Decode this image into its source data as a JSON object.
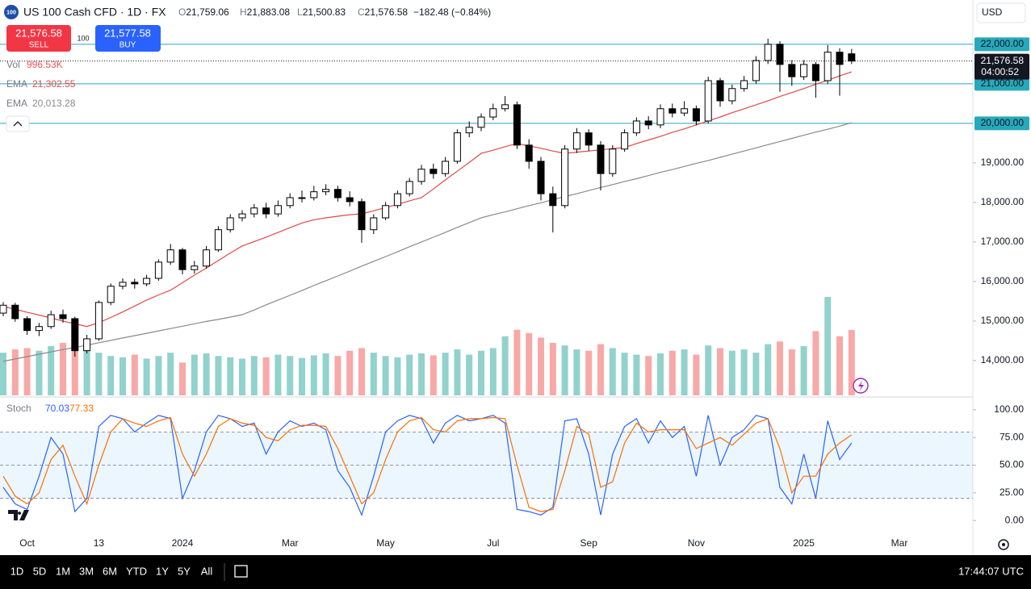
{
  "ui": {
    "symbol_icon": "100",
    "symbol": "US 100 Cash CFD · 1D · FX",
    "ohlc": [
      {
        "key": "O",
        "value": "21,759.06"
      },
      {
        "key": "H",
        "value": "21,883.08"
      },
      {
        "key": "L",
        "value": "21,500.83"
      },
      {
        "key": "C",
        "value": "21,576.58"
      }
    ],
    "change": "−182.48 (−0.84%)",
    "sell": {
      "price": "21,576.58",
      "label": "SELL"
    },
    "spread": "100",
    "buy": {
      "price": "21,577.58",
      "label": "BUY"
    },
    "currency": "USD",
    "volume_legend": {
      "name": "Vol",
      "value": "996.53K"
    },
    "ema_values": [
      "21,302.55",
      "20,013.28"
    ],
    "last_price": "21,576.58",
    "countdown": "04:00:52",
    "stoch_values": [
      "70.03",
      "77.33"
    ],
    "ranges": [
      "1D",
      "5D",
      "1M",
      "3M",
      "6M",
      "YTD",
      "1Y",
      "5Y",
      "All"
    ],
    "clock": "17:44:07 UTC"
  },
  "chart_data": [
    {
      "type": "candlestick",
      "categories": [
        null,
        null,
        "Oct",
        null,
        null,
        null,
        null,
        null,
        "13",
        null,
        null,
        null,
        null,
        null,
        null,
        "2024",
        null,
        null,
        null,
        null,
        null,
        null,
        null,
        null,
        "Mar",
        null,
        null,
        null,
        null,
        null,
        null,
        null,
        "May",
        null,
        null,
        null,
        null,
        null,
        null,
        null,
        null,
        "Jul",
        null,
        null,
        null,
        null,
        null,
        null,
        null,
        "Sep",
        null,
        null,
        null,
        null,
        null,
        null,
        null,
        null,
        "Nov",
        null,
        null,
        null,
        null,
        null,
        null,
        null,
        null,
        "2025",
        null,
        null,
        null,
        null,
        null,
        null,
        null,
        "Mar"
      ],
      "open": [
        15200,
        15400,
        15060,
        14760,
        14860,
        15160,
        15060,
        14250,
        14550,
        15470,
        15880,
        15980,
        15940,
        16080,
        16490,
        16800,
        16300,
        16390,
        16800,
        17310,
        17610,
        17710,
        17860,
        17710,
        17920,
        18120,
        18120,
        18270,
        18330,
        18120,
        18020,
        17310,
        17610,
        17920,
        18220,
        18530,
        18840,
        18730,
        19040,
        19760,
        19900,
        20160,
        20370,
        20470,
        19450,
        19040,
        18220,
        17920,
        19350,
        19760,
        19450,
        18730,
        19350,
        19760,
        20060,
        19960,
        20370,
        20260,
        20370,
        20060,
        21080,
        20570,
        20880,
        21080,
        21590,
        22000,
        21490,
        21180,
        21490,
        21080,
        21800,
        21759.06,
        null,
        null,
        null,
        null
      ],
      "high": [
        15480,
        15460,
        15120,
        14950,
        15260,
        15290,
        15110,
        14650,
        15520,
        15950,
        16080,
        16070,
        16170,
        16560,
        16950,
        16850,
        16520,
        16900,
        17400,
        17700,
        17800,
        17960,
        17990,
        18050,
        18230,
        18300,
        18420,
        18460,
        18420,
        18280,
        18100,
        17700,
        18010,
        18300,
        18620,
        18950,
        18980,
        19150,
        19850,
        20050,
        20250,
        20500,
        20690,
        20550,
        19600,
        19150,
        18400,
        19450,
        19880,
        19850,
        19550,
        19450,
        19850,
        20150,
        20180,
        20480,
        20500,
        20560,
        20450,
        21180,
        21150,
        20980,
        21200,
        21700,
        22140,
        22080,
        21600,
        21600,
        21550,
        21980,
        21900,
        21883.08,
        null,
        null,
        null,
        null
      ],
      "low": [
        15120,
        14980,
        14650,
        14620,
        14800,
        14960,
        14100,
        14180,
        14500,
        15400,
        15800,
        15820,
        15880,
        16020,
        16420,
        16180,
        16200,
        16330,
        16750,
        17240,
        17520,
        17620,
        17600,
        17640,
        17850,
        18000,
        18050,
        18180,
        18020,
        17900,
        16980,
        17200,
        17550,
        17850,
        18150,
        18450,
        18600,
        18650,
        18980,
        19650,
        19800,
        20080,
        20300,
        19350,
        18850,
        18050,
        17240,
        17850,
        19250,
        19300,
        18300,
        18650,
        19280,
        19680,
        19850,
        19880,
        20150,
        20180,
        19950,
        20000,
        20420,
        20480,
        20800,
        21000,
        21500,
        20800,
        20950,
        21100,
        20650,
        21000,
        20700,
        21500.83,
        null,
        null,
        null,
        null
      ],
      "close": [
        15400,
        15060,
        14760,
        14860,
        15160,
        15060,
        14250,
        14550,
        15470,
        15880,
        15980,
        15940,
        16080,
        16490,
        16800,
        16300,
        16390,
        16800,
        17310,
        17610,
        17710,
        17860,
        17710,
        17920,
        18120,
        18120,
        18270,
        18330,
        18120,
        18020,
        17310,
        17610,
        17920,
        18220,
        18530,
        18840,
        18730,
        19040,
        19760,
        19900,
        20160,
        20370,
        20470,
        19450,
        19040,
        18220,
        17920,
        19350,
        19760,
        19450,
        18730,
        19350,
        19760,
        20060,
        19960,
        20370,
        20260,
        20370,
        20060,
        21080,
        20570,
        20880,
        21080,
        21590,
        22000,
        21490,
        21180,
        21490,
        21080,
        21800,
        21490,
        21576.58,
        null,
        null,
        null,
        null
      ],
      "volume": [
        650,
        700,
        720,
        680,
        750,
        800,
        850,
        700,
        650,
        600,
        580,
        620,
        560,
        600,
        650,
        500,
        620,
        640,
        600,
        580,
        560,
        600,
        580,
        620,
        600,
        570,
        610,
        640,
        600,
        680,
        720,
        650,
        600,
        580,
        620,
        640,
        610,
        650,
        700,
        620,
        680,
        720,
        900,
        1000,
        950,
        880,
        800,
        760,
        700,
        680,
        780,
        720,
        650,
        620,
        600,
        640,
        680,
        700,
        620,
        760,
        720,
        680,
        700,
        650,
        780,
        820,
        700,
        750,
        980,
        1500,
        900,
        996.53,
        null,
        null,
        null,
        null
      ],
      "up_color": "#ffffff",
      "down_color": "#000000",
      "volume_up_color": "#26a69a",
      "volume_down_color": "#ef5350",
      "series": [
        {
          "name": "EMA",
          "color": "#e04848",
          "values": [
            15370,
            15300,
            15220,
            15150,
            15080,
            15000,
            14930,
            14860,
            14960,
            15090,
            15230,
            15380,
            15530,
            15660,
            15780,
            15970,
            16160,
            16340,
            16530,
            16720,
            16900,
            17010,
            17120,
            17240,
            17360,
            17480,
            17560,
            17610,
            17650,
            17690,
            17710,
            17790,
            17870,
            17950,
            18040,
            18120,
            18340,
            18570,
            18790,
            19010,
            19240,
            19320,
            19410,
            19490,
            19430,
            19370,
            19300,
            19240,
            19270,
            19300,
            19330,
            19360,
            19390,
            19490,
            19580,
            19670,
            19770,
            19860,
            19960,
            20060,
            20160,
            20270,
            20370,
            20470,
            20570,
            20680,
            20780,
            20880,
            20990,
            21090,
            21200,
            21302.55,
            null,
            null,
            null,
            null
          ]
        },
        {
          "name": "EMA",
          "color": "#8a8a8a",
          "values": [
            13980,
            14040,
            14100,
            14160,
            14220,
            14280,
            14330,
            14390,
            14450,
            14510,
            14570,
            14630,
            14690,
            14750,
            14810,
            14870,
            14930,
            14990,
            15040,
            15100,
            15160,
            15280,
            15410,
            15530,
            15650,
            15770,
            15900,
            16020,
            16140,
            16260,
            16390,
            16510,
            16630,
            16750,
            16880,
            17000,
            17120,
            17240,
            17370,
            17490,
            17610,
            17690,
            17760,
            17840,
            17920,
            17990,
            18070,
            18150,
            18220,
            18300,
            18380,
            18450,
            18530,
            18600,
            18680,
            18760,
            18830,
            18910,
            18990,
            19060,
            19140,
            19220,
            19300,
            19380,
            19460,
            19540,
            19620,
            19700,
            19780,
            19850,
            19930,
            20013.28,
            null,
            null,
            null,
            null
          ]
        }
      ],
      "ylim": [
        13120,
        23120
      ],
      "yticks": [
        {
          "value": 22000,
          "label": "22,000.00"
        },
        {
          "value": 21000,
          "label": "21,000.00"
        },
        {
          "value": 20000,
          "label": "20,000.00"
        },
        {
          "value": 19000,
          "label": "19,000.00"
        },
        {
          "value": 18000,
          "label": "18,000.00"
        },
        {
          "value": 17000,
          "label": "17,000.00"
        },
        {
          "value": 16000,
          "label": "16,000.00"
        },
        {
          "value": 15000,
          "label": "15,000.00"
        },
        {
          "value": 14000,
          "label": "14,000.00"
        }
      ],
      "horizontal_lines": [
        22000,
        21000,
        20000
      ],
      "horizontal_line_color": "#26a9bb"
    },
    {
      "type": "line",
      "title": "Stoch",
      "series": [
        {
          "color": "#2962ff",
          "values": [
            30,
            15,
            10,
            40,
            75,
            60,
            8,
            20,
            85,
            95,
            92,
            80,
            88,
            95,
            92,
            20,
            45,
            80,
            95,
            92,
            85,
            88,
            60,
            80,
            90,
            85,
            88,
            82,
            45,
            30,
            5,
            40,
            80,
            90,
            95,
            92,
            70,
            88,
            95,
            90,
            92,
            95,
            88,
            10,
            8,
            5,
            12,
            90,
            92,
            60,
            5,
            60,
            85,
            92,
            70,
            90,
            75,
            85,
            40,
            95,
            50,
            75,
            82,
            95,
            92,
            30,
            15,
            60,
            20,
            90,
            55,
            70.03,
            null,
            null,
            null,
            null
          ]
        },
        {
          "color": "#ff6d00",
          "values": [
            40,
            22,
            15,
            25,
            55,
            68,
            40,
            15,
            50,
            80,
            92,
            88,
            85,
            90,
            93,
            60,
            40,
            60,
            85,
            92,
            88,
            86,
            75,
            72,
            82,
            86,
            86,
            85,
            65,
            40,
            15,
            25,
            55,
            80,
            90,
            93,
            82,
            80,
            90,
            92,
            92,
            93,
            92,
            50,
            12,
            8,
            10,
            45,
            85,
            78,
            30,
            35,
            70,
            88,
            80,
            82,
            82,
            82,
            65,
            70,
            75,
            68,
            78,
            88,
            92,
            65,
            25,
            40,
            40,
            60,
            70,
            77.33,
            null,
            null,
            null,
            null
          ]
        }
      ],
      "ylim": [
        -7.2,
        109.4
      ],
      "yticks": [
        {
          "value": 100,
          "label": "100.00"
        },
        {
          "value": 75,
          "label": "75.00"
        },
        {
          "value": 50,
          "label": "50.00"
        },
        {
          "value": 25,
          "label": "25.00"
        },
        {
          "value": 0,
          "label": "0.00"
        }
      ],
      "levels": [
        80,
        50,
        20
      ],
      "band_color": "#2196f3"
    }
  ]
}
